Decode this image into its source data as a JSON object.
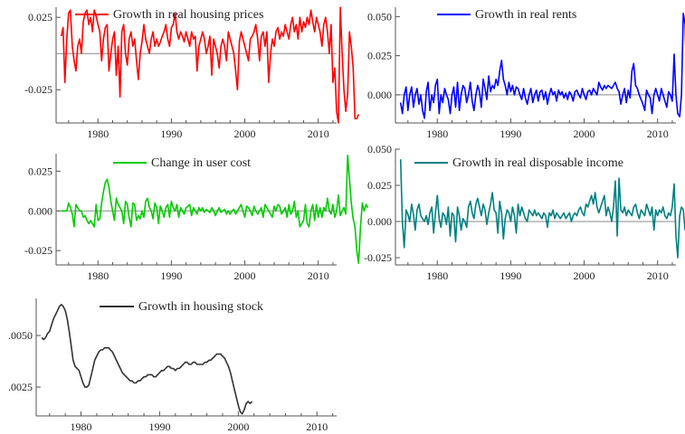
{
  "chart_data": [
    {
      "type": "line",
      "title": "",
      "series": [
        {
          "name": "Growth in real housing prices",
          "color": "#ff0000",
          "x_start": 1975.0,
          "x_step": 0.25,
          "values": [
            0.012,
            0.018,
            -0.02,
            0.01,
            0.028,
            0.03,
            0.005,
            -0.005,
            -0.012,
            0.005,
            0.01,
            0.0,
            0.022,
            0.028,
            0.03,
            0.02,
            0.025,
            0.015,
            0.03,
            0.026,
            0.02,
            0.015,
            -0.005,
            0.01,
            0.018,
            0.02,
            -0.012,
            0.0,
            0.01,
            0.015,
            -0.015,
            0.005,
            -0.03,
            0.015,
            0.02,
            0.0,
            -0.008,
            0.01,
            0.015,
            0.005,
            0.01,
            -0.005,
            -0.018,
            0.0,
            0.008,
            0.02,
            0.01,
            0.005,
            0.0,
            0.01,
            0.015,
            0.005,
            0.01,
            0.005,
            0.008,
            0.012,
            0.015,
            0.02,
            0.01,
            0.005,
            0.018,
            0.02,
            0.028,
            0.015,
            0.01,
            0.015,
            0.012,
            0.008,
            0.015,
            0.01,
            0.005,
            0.015,
            0.01,
            0.012,
            -0.012,
            0.005,
            0.01,
            0.015,
            0.01,
            0.0,
            0.005,
            0.012,
            -0.015,
            0.01,
            0.005,
            0.0,
            -0.01,
            0.005,
            0.01,
            0.005,
            -0.005,
            0.015,
            0.01,
            0.005,
            0.0,
            -0.012,
            -0.025,
            0.008,
            0.015,
            0.01,
            0.005,
            0.0,
            -0.005,
            0.01,
            0.012,
            0.015,
            0.02,
            0.01,
            -0.005,
            0.012,
            0.015,
            0.005,
            0.015,
            -0.02,
            0.0,
            0.01,
            0.005,
            0.015,
            0.018,
            0.01,
            0.015,
            0.012,
            0.02,
            0.015,
            0.01,
            0.02,
            0.025,
            0.015,
            0.02,
            0.01,
            0.025,
            0.015,
            0.022,
            0.018,
            0.025,
            0.02,
            0.03,
            0.022,
            0.015,
            0.025,
            0.02,
            0.015,
            0.005,
            0.02,
            0.025,
            0.015,
            0.0,
            0.02,
            -0.02,
            -0.01,
            -0.04,
            -0.048,
            0.032,
            0.0,
            -0.025,
            -0.04,
            -0.028,
            0.015,
            0.005,
            -0.01,
            -0.045,
            -0.045,
            -0.042
          ]
        }
      ],
      "xlim": [
        1974.3,
        2012.5
      ],
      "ylim": [
        -0.048,
        0.032
      ],
      "xticks": [
        "1980",
        "1990",
        "2000",
        "2010"
      ],
      "yticks": [
        "0.025",
        "-0.025"
      ],
      "ytick_values": [
        0.025,
        -0.025
      ],
      "zero_line": 0.0,
      "legend": "top"
    },
    {
      "type": "line",
      "title": "",
      "series": [
        {
          "name": "Growth in real rents",
          "color": "#0000ff",
          "x_start": 1975.0,
          "x_step": 0.25,
          "values": [
            -0.005,
            -0.012,
            0.0,
            0.005,
            -0.01,
            0.0,
            0.005,
            -0.008,
            0.0,
            0.004,
            -0.006,
            0.0,
            -0.01,
            -0.015,
            0.002,
            0.008,
            -0.01,
            0.0,
            -0.005,
            0.006,
            0.01,
            -0.012,
            0.0,
            -0.005,
            0.004,
            0.0,
            -0.003,
            -0.012,
            0.0,
            0.005,
            -0.008,
            0.008,
            -0.01,
            0.0,
            0.006,
            0.004,
            -0.005,
            0.0,
            0.008,
            -0.004,
            -0.01,
            0.0,
            0.006,
            0.002,
            -0.008,
            0.01,
            0.004,
            -0.003,
            0.012,
            0.002,
            0.006,
            0.004,
            0.01,
            0.006,
            0.015,
            0.022,
            0.01,
            0.006,
            0.0,
            0.008,
            0.002,
            0.006,
            0.0,
            0.005,
            0.004,
            0.0,
            -0.003,
            0.004,
            -0.002,
            -0.006,
            0.0,
            0.004,
            -0.005,
            0.0,
            0.003,
            -0.004,
            0.002,
            0.003,
            -0.003,
            0.002,
            -0.006,
            0.0,
            0.004,
            0.0,
            0.002,
            -0.004,
            0.003,
            0.0,
            0.002,
            -0.002,
            0.001,
            -0.003,
            0.002,
            0.0,
            -0.004,
            0.002,
            0.003,
            0.0,
            -0.002,
            0.004,
            0.0,
            -0.003,
            0.002,
            0.003,
            0.0,
            0.004,
            0.002,
            0.0,
            0.008,
            0.005,
            0.003,
            0.006,
            0.004,
            0.006,
            0.005,
            0.004,
            0.006,
            0.008,
            0.004,
            0.002,
            -0.006,
            0.0,
            0.004,
            -0.005,
            0.003,
            -0.002,
            0.015,
            0.02,
            0.006,
            0.004,
            0.0,
            -0.003,
            -0.006,
            -0.01,
            0.003,
            0.0,
            -0.002,
            -0.012,
            0.0,
            0.004,
            0.0,
            -0.004,
            0.004,
            0.0,
            -0.004,
            -0.008,
            0.002,
            0.0,
            -0.004,
            0.026,
            0.0,
            -0.012,
            -0.014,
            0.0,
            0.052,
            0.045,
            0.0,
            -0.01,
            0.002,
            -0.006,
            -0.012,
            -0.004,
            0.003,
            0.0,
            -0.008,
            -0.015
          ]
        }
      ],
      "xlim": [
        1974.3,
        2012.5
      ],
      "ylim": [
        -0.018,
        0.056
      ],
      "xticks": [
        "1980",
        "1990",
        "2000",
        "2010"
      ],
      "yticks": [
        "0.050",
        "0.025",
        "0.000"
      ],
      "ytick_values": [
        0.05,
        0.025,
        0.0
      ],
      "zero_line": 0.0,
      "legend": "top"
    },
    {
      "type": "line",
      "title": "",
      "series": [
        {
          "name": "Change in user cost",
          "color": "#00cc00",
          "x_start": 1975.0,
          "x_step": 0.25,
          "values": [
            0.0,
            0.0,
            0.0,
            0.0,
            0.005,
            0.002,
            -0.002,
            -0.01,
            0.004,
            0.002,
            0.0,
            0.0,
            -0.004,
            -0.003,
            -0.006,
            -0.008,
            -0.006,
            -0.008,
            -0.01,
            0.004,
            -0.006,
            -0.005,
            0.005,
            0.012,
            0.018,
            0.02,
            0.015,
            0.006,
            0.0,
            -0.006,
            0.008,
            0.004,
            0.002,
            0.0,
            -0.008,
            0.006,
            0.004,
            -0.004,
            -0.01,
            0.005,
            0.004,
            -0.006,
            -0.003,
            -0.005,
            0.0,
            -0.004,
            0.006,
            0.008,
            0.002,
            0.0,
            -0.005,
            0.005,
            0.002,
            -0.008,
            0.003,
            0.0,
            -0.004,
            0.002,
            0.004,
            -0.004,
            0.006,
            0.002,
            0.0,
            0.004,
            -0.004,
            0.002,
            0.0,
            -0.002,
            0.002,
            0.003,
            0.004,
            -0.003,
            0.002,
            0.0,
            -0.002,
            0.002,
            0.0,
            0.002,
            -0.001,
            0.001,
            0.0,
            -0.001,
            0.002,
            0.0,
            -0.003,
            0.0,
            0.002,
            -0.001,
            0.0,
            0.001,
            -0.002,
            0.0,
            -0.002,
            0.0,
            0.001,
            -0.002,
            0.0,
            0.002,
            0.004,
            0.0,
            -0.004,
            0.003,
            0.002,
            0.0,
            -0.003,
            0.003,
            0.0,
            -0.002,
            0.0,
            0.002,
            -0.004,
            0.004,
            0.002,
            0.0,
            -0.002,
            -0.004,
            0.003,
            0.0,
            0.004,
            0.003,
            -0.002,
            0.0,
            0.002,
            -0.004,
            0.004,
            -0.002,
            0.0,
            0.006,
            -0.004,
            0.0,
            -0.01,
            -0.008,
            -0.006,
            0.004,
            -0.008,
            -0.01,
            0.0,
            0.004,
            -0.006,
            0.004,
            -0.004,
            0.002,
            -0.004,
            0.002,
            0.0,
            0.008,
            0.0,
            -0.002,
            0.004,
            -0.004,
            0.0,
            0.01,
            -0.003,
            0.0,
            0.002,
            -0.002,
            0.035,
            0.02,
            0.005,
            -0.005,
            -0.01,
            -0.025,
            -0.033,
            -0.01,
            0.005,
            0.0,
            0.004,
            0.002
          ]
        }
      ],
      "xlim": [
        1974.3,
        2012.5
      ],
      "ylim": [
        -0.034,
        0.036
      ],
      "xticks": [
        "1980",
        "1990",
        "2000",
        "2010"
      ],
      "yticks": [
        "0.025",
        "0.000",
        "-0.025"
      ],
      "ytick_values": [
        0.025,
        0.0,
        -0.025
      ],
      "zero_line": 0.0,
      "legend": "top"
    },
    {
      "type": "line",
      "title": "",
      "series": [
        {
          "name": "Growth in real disposable income",
          "color": "#008080",
          "x_start": 1975.0,
          "x_step": 0.25,
          "values": [
            0.043,
            0.0,
            -0.018,
            0.008,
            0.005,
            0.0,
            0.012,
            0.005,
            -0.006,
            0.008,
            0.012,
            0.004,
            0.002,
            0.0,
            0.004,
            -0.002,
            0.006,
            0.01,
            -0.008,
            0.006,
            0.018,
            0.002,
            -0.004,
            0.006,
            0.004,
            -0.002,
            0.01,
            -0.01,
            0.006,
            0.004,
            -0.014,
            0.01,
            0.004,
            -0.006,
            0.002,
            0.0,
            -0.004,
            0.01,
            0.014,
            0.006,
            0.002,
            0.012,
            0.016,
            0.01,
            0.004,
            0.012,
            0.008,
            -0.002,
            0.006,
            0.012,
            0.02,
            0.008,
            0.006,
            -0.008,
            0.014,
            0.006,
            -0.012,
            0.002,
            0.008,
            0.006,
            0.0,
            0.01,
            0.004,
            -0.008,
            0.012,
            0.004,
            0.01,
            0.006,
            0.002,
            0.0,
            0.008,
            0.006,
            0.004,
            0.008,
            0.004,
            0.006,
            0.004,
            0.002,
            0.006,
            0.004,
            -0.004,
            0.006,
            0.004,
            0.008,
            0.002,
            0.006,
            0.004,
            0.002,
            0.004,
            0.006,
            0.002,
            0.004,
            0.006,
            0.0,
            0.004,
            0.006,
            0.004,
            0.008,
            0.01,
            0.006,
            0.004,
            0.012,
            0.01,
            0.014,
            0.018,
            0.012,
            0.02,
            0.01,
            0.006,
            0.01,
            0.014,
            0.018,
            0.004,
            0.01,
            0.006,
            0.0,
            0.01,
            0.028,
            -0.01,
            0.03,
            0.008,
            0.006,
            0.01,
            0.004,
            0.008,
            0.006,
            0.004,
            0.01,
            0.012,
            0.006,
            0.002,
            0.008,
            0.006,
            0.004,
            0.012,
            0.008,
            0.004,
            0.01,
            -0.006,
            0.008,
            0.004,
            0.008,
            0.006,
            0.01,
            0.004,
            0.002,
            0.006,
            0.004,
            0.01,
            0.026,
            -0.01,
            -0.025,
            0.004,
            0.01,
            0.008,
            -0.006,
            0.004,
            0.012,
            0.008,
            -0.004,
            0.006,
            0.004,
            -0.008,
            -0.018,
            0.003
          ]
        }
      ],
      "xlim": [
        1974.3,
        2012.5
      ],
      "ylim": [
        -0.03,
        0.05
      ],
      "xticks": [
        "1980",
        "1990",
        "2000",
        "2010"
      ],
      "yticks": [
        "0.050",
        "0.025",
        "0.000",
        "-0.025"
      ],
      "ytick_values": [
        0.05,
        0.025,
        0.0,
        -0.025
      ],
      "zero_line": 0.0,
      "legend": "top"
    },
    {
      "type": "line",
      "title": "",
      "series": [
        {
          "name": "Growth in housing stock",
          "color": "#333333",
          "x_start": 1975.0,
          "x_step": 0.25,
          "values": [
            0.0049,
            0.0048,
            0.0049,
            0.0051,
            0.0052,
            0.0055,
            0.0058,
            0.006,
            0.0062,
            0.0064,
            0.0065,
            0.0064,
            0.0062,
            0.0058,
            0.0052,
            0.0045,
            0.0038,
            0.0035,
            0.0034,
            0.0033,
            0.003,
            0.0027,
            0.0025,
            0.0025,
            0.0026,
            0.003,
            0.0034,
            0.0038,
            0.004,
            0.0042,
            0.0043,
            0.0043,
            0.0044,
            0.0044,
            0.0044,
            0.0043,
            0.0042,
            0.004,
            0.0038,
            0.0036,
            0.0034,
            0.0032,
            0.0031,
            0.003,
            0.0029,
            0.0028,
            0.0028,
            0.0027,
            0.0027,
            0.0028,
            0.0028,
            0.0029,
            0.003,
            0.003,
            0.0031,
            0.0031,
            0.0031,
            0.003,
            0.003,
            0.0031,
            0.0032,
            0.0033,
            0.0033,
            0.0034,
            0.0035,
            0.0035,
            0.0034,
            0.0034,
            0.0033,
            0.0034,
            0.0034,
            0.0035,
            0.0036,
            0.0037,
            0.0037,
            0.0036,
            0.0036,
            0.0037,
            0.0037,
            0.0036,
            0.0036,
            0.0036,
            0.0036,
            0.0037,
            0.0037,
            0.0038,
            0.0038,
            0.0039,
            0.004,
            0.0041,
            0.0041,
            0.0041,
            0.004,
            0.0039,
            0.0037,
            0.0035,
            0.0032,
            0.0028,
            0.0024,
            0.002,
            0.0016,
            0.0013,
            0.0012,
            0.0014,
            0.0017,
            0.0018,
            0.0017,
            0.0018
          ]
        }
      ],
      "xlim": [
        1974.3,
        2012.5
      ],
      "ylim": [
        0.0011,
        0.0068
      ],
      "xticks": [
        "1980",
        "1990",
        "2000",
        "2010"
      ],
      "yticks": [
        ".0050",
        ".0025"
      ],
      "ytick_values": [
        0.005,
        0.0025
      ],
      "zero_line": null,
      "legend": "top"
    }
  ]
}
